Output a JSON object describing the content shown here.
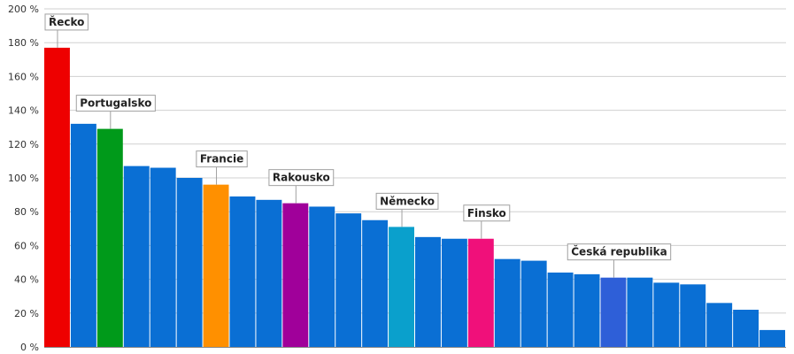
{
  "chart_data": {
    "type": "bar",
    "title": "",
    "xlabel": "",
    "ylabel": "",
    "ylim": [
      0,
      200
    ],
    "yticks": [
      "0 %",
      "20 %",
      "40 %",
      "60 %",
      "80 %",
      "100 %",
      "120 %",
      "140 %",
      "160 %",
      "180 %",
      "200 %"
    ],
    "grid": true,
    "default_color": "#0a6fd4",
    "values": [
      177,
      132,
      129,
      107,
      106,
      100,
      96,
      89,
      87,
      85,
      83,
      79,
      75,
      71,
      65,
      64,
      64,
      52,
      51,
      44,
      43,
      41,
      41,
      38,
      37,
      26,
      22,
      10
    ],
    "highlights": [
      {
        "index": 0,
        "label": "Řecko",
        "color": "#ee0000"
      },
      {
        "index": 2,
        "label": "Portugalsko",
        "color": "#009a1a"
      },
      {
        "index": 6,
        "label": "Francie",
        "color": "#ff9000"
      },
      {
        "index": 9,
        "label": "Rakousko",
        "color": "#a0009a"
      },
      {
        "index": 13,
        "label": "Německo",
        "color": "#0aa0cc"
      },
      {
        "index": 16,
        "label": "Finsko",
        "color": "#f0107a"
      },
      {
        "index": 21,
        "label": "Česká republika",
        "color": "#2e5fd8"
      }
    ]
  }
}
